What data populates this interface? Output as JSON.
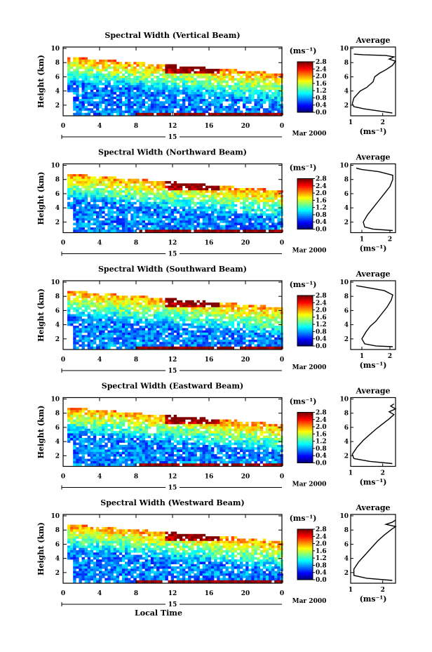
{
  "chart_data": {
    "type": "heatmap",
    "date_label": "Mar 2000",
    "xlabel": "Local Time",
    "ylabel": "Height (km)",
    "x_ticks": [
      "0",
      "4",
      "8",
      "12",
      "16",
      "20",
      "0"
    ],
    "day_label": "15",
    "y_ticks": [
      "2",
      "4",
      "6",
      "8",
      "10"
    ],
    "xlim": [
      0,
      24
    ],
    "ylim": [
      0.5,
      10.2
    ],
    "colorbar": {
      "label": "(ms⁻¹)",
      "ticks": [
        "0.0",
        "0.4",
        "0.8",
        "1.2",
        "1.6",
        "2.0",
        "2.4",
        "2.8"
      ],
      "range": [
        0.0,
        2.8
      ]
    },
    "average_panel": {
      "title": "Average",
      "xlabel": "(ms⁻¹)",
      "y_ticks": [
        "2",
        "4",
        "6",
        "8",
        "10"
      ]
    },
    "panels": [
      {
        "title": "Spectral Width (Vertical Beam)",
        "avg_x_ticks": [
          "1",
          "2"
        ],
        "avg_xlim": [
          1.0,
          2.4
        ],
        "average_profile": [
          [
            2.3,
            0.9
          ],
          [
            2.0,
            1.1
          ],
          [
            1.4,
            1.5
          ],
          [
            1.1,
            1.8
          ],
          [
            1.05,
            2.2
          ],
          [
            1.1,
            3.0
          ],
          [
            1.2,
            3.5
          ],
          [
            1.3,
            4.0
          ],
          [
            1.5,
            4.5
          ],
          [
            1.7,
            5.3
          ],
          [
            1.75,
            6.0
          ],
          [
            1.9,
            6.5
          ],
          [
            2.1,
            7.0
          ],
          [
            2.3,
            7.6
          ],
          [
            2.4,
            8.2
          ],
          [
            2.2,
            8.5
          ],
          [
            2.35,
            8.8
          ],
          [
            2.1,
            9.0
          ],
          [
            1.4,
            9.1
          ],
          [
            1.1,
            9.2
          ]
        ]
      },
      {
        "title": "Spectral Width (Northward Beam)",
        "avg_x_ticks": [
          "1",
          "2"
        ],
        "avg_xlim": [
          0.6,
          2.2
        ],
        "average_profile": [
          [
            2.1,
            0.8
          ],
          [
            1.4,
            1.0
          ],
          [
            1.1,
            1.3
          ],
          [
            1.05,
            2.0
          ],
          [
            1.2,
            3.0
          ],
          [
            1.4,
            4.0
          ],
          [
            1.6,
            5.0
          ],
          [
            1.8,
            6.0
          ],
          [
            2.0,
            7.0
          ],
          [
            2.1,
            8.0
          ],
          [
            2.1,
            8.6
          ],
          [
            1.6,
            9.1
          ],
          [
            1.0,
            9.4
          ],
          [
            0.8,
            9.6
          ]
        ]
      },
      {
        "title": "Spectral Width (Southward Beam)",
        "avg_x_ticks": [
          "1",
          "2"
        ],
        "avg_xlim": [
          0.6,
          2.2
        ],
        "average_profile": [
          [
            2.1,
            0.9
          ],
          [
            1.5,
            1.0
          ],
          [
            1.1,
            1.3
          ],
          [
            1.0,
            2.0
          ],
          [
            1.15,
            3.0
          ],
          [
            1.3,
            3.8
          ],
          [
            1.5,
            4.5
          ],
          [
            1.7,
            5.5
          ],
          [
            1.9,
            6.5
          ],
          [
            2.05,
            7.5
          ],
          [
            2.1,
            8.2
          ],
          [
            1.8,
            8.8
          ],
          [
            1.1,
            9.3
          ],
          [
            0.8,
            9.5
          ]
        ]
      },
      {
        "title": "Spectral Width (Eastward Beam)",
        "avg_x_ticks": [
          "1",
          "2"
        ],
        "avg_xlim": [
          1.0,
          2.4
        ],
        "average_profile": [
          [
            2.3,
            0.9
          ],
          [
            1.6,
            1.2
          ],
          [
            1.1,
            1.6
          ],
          [
            1.05,
            2.2
          ],
          [
            1.2,
            3.2
          ],
          [
            1.4,
            4.2
          ],
          [
            1.6,
            5.0
          ],
          [
            1.8,
            5.8
          ],
          [
            2.0,
            6.5
          ],
          [
            2.2,
            7.2
          ],
          [
            2.35,
            7.8
          ],
          [
            2.2,
            8.2
          ],
          [
            2.4,
            8.6
          ],
          [
            2.25,
            9.0
          ],
          [
            2.35,
            9.3
          ]
        ]
      },
      {
        "title": "Spectral Width (Westward Beam)",
        "avg_x_ticks": [
          "1",
          "2"
        ],
        "avg_xlim": [
          1.0,
          2.4
        ],
        "average_profile": [
          [
            2.3,
            0.9
          ],
          [
            1.5,
            1.2
          ],
          [
            1.1,
            1.6
          ],
          [
            1.1,
            2.5
          ],
          [
            1.25,
            3.5
          ],
          [
            1.45,
            4.5
          ],
          [
            1.65,
            5.5
          ],
          [
            1.85,
            6.5
          ],
          [
            2.05,
            7.3
          ],
          [
            2.25,
            8.0
          ],
          [
            2.4,
            8.5
          ],
          [
            2.1,
            8.8
          ],
          [
            2.3,
            9.1
          ],
          [
            2.4,
            9.4
          ]
        ]
      }
    ]
  }
}
